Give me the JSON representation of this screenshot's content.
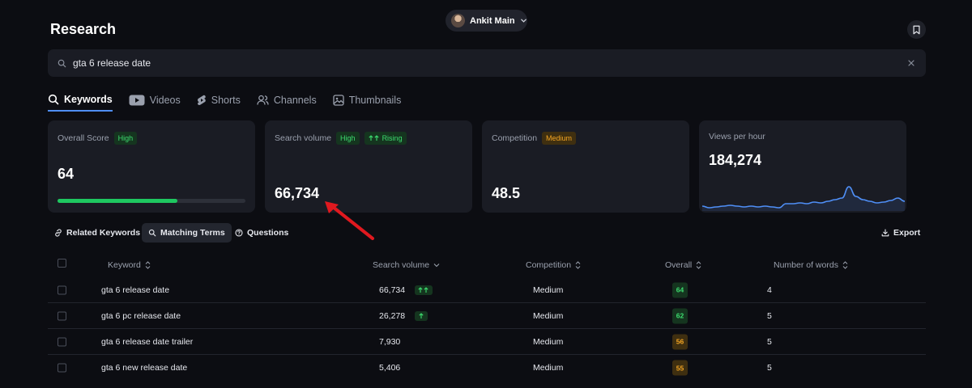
{
  "header": {
    "title": "Research",
    "user_name": "Ankit Main"
  },
  "search": {
    "value": "gta 6 release date",
    "placeholder": ""
  },
  "tabs": [
    {
      "label": "Keywords",
      "icon": "search-icon",
      "active": true
    },
    {
      "label": "Videos",
      "icon": "youtube-icon",
      "active": false
    },
    {
      "label": "Shorts",
      "icon": "shorts-icon",
      "active": false
    },
    {
      "label": "Channels",
      "icon": "users-icon",
      "active": false
    },
    {
      "label": "Thumbnails",
      "icon": "image-icon",
      "active": false
    }
  ],
  "cards": {
    "overall": {
      "label": "Overall Score",
      "badge": "High",
      "value": "64",
      "progress": 0.64
    },
    "search_volume": {
      "label": "Search volume",
      "badge": "High",
      "trend_badge": "Rising",
      "value": "66,734"
    },
    "competition": {
      "label": "Competition",
      "badge": "Medium",
      "value": "48.5"
    },
    "views": {
      "label": "Views per hour",
      "value": "184,274",
      "sparkline": [
        6,
        4,
        5,
        6,
        7,
        6,
        5,
        6,
        5,
        6,
        5,
        4,
        9,
        9,
        10,
        9,
        11,
        10,
        12,
        14,
        16,
        30,
        18,
        14,
        12,
        10,
        11,
        13,
        16,
        12
      ]
    }
  },
  "subtabs": [
    {
      "label": "Related Keywords",
      "icon": "link-icon",
      "active": false
    },
    {
      "label": "Matching Terms",
      "icon": "search-icon",
      "active": true
    },
    {
      "label": "Questions",
      "icon": "question-icon",
      "active": false
    }
  ],
  "export_label": "Export",
  "table": {
    "columns": {
      "keyword": "Keyword",
      "search_volume": "Search volume",
      "competition": "Competition",
      "overall": "Overall",
      "words": "Number of words"
    },
    "rows": [
      {
        "keyword": "gta 6 release date",
        "volume": "66,734",
        "trend": "double-up",
        "competition": "Medium",
        "overall": "64",
        "overall_color": "green",
        "words": "4"
      },
      {
        "keyword": "gta 6 pc release date",
        "volume": "26,278",
        "trend": "up",
        "competition": "Medium",
        "overall": "62",
        "overall_color": "green",
        "words": "5"
      },
      {
        "keyword": "gta 6 release date trailer",
        "volume": "7,930",
        "trend": "",
        "competition": "Medium",
        "overall": "56",
        "overall_color": "orange",
        "words": "5"
      },
      {
        "keyword": "gta 6 new release date",
        "volume": "5,406",
        "trend": "",
        "competition": "Medium",
        "overall": "55",
        "overall_color": "orange",
        "words": "5"
      }
    ]
  },
  "colors": {
    "accent": "#4f8ff7",
    "green": "#3ddc6f",
    "orange": "#f5a623",
    "annotation_arrow": "#e0191f"
  }
}
